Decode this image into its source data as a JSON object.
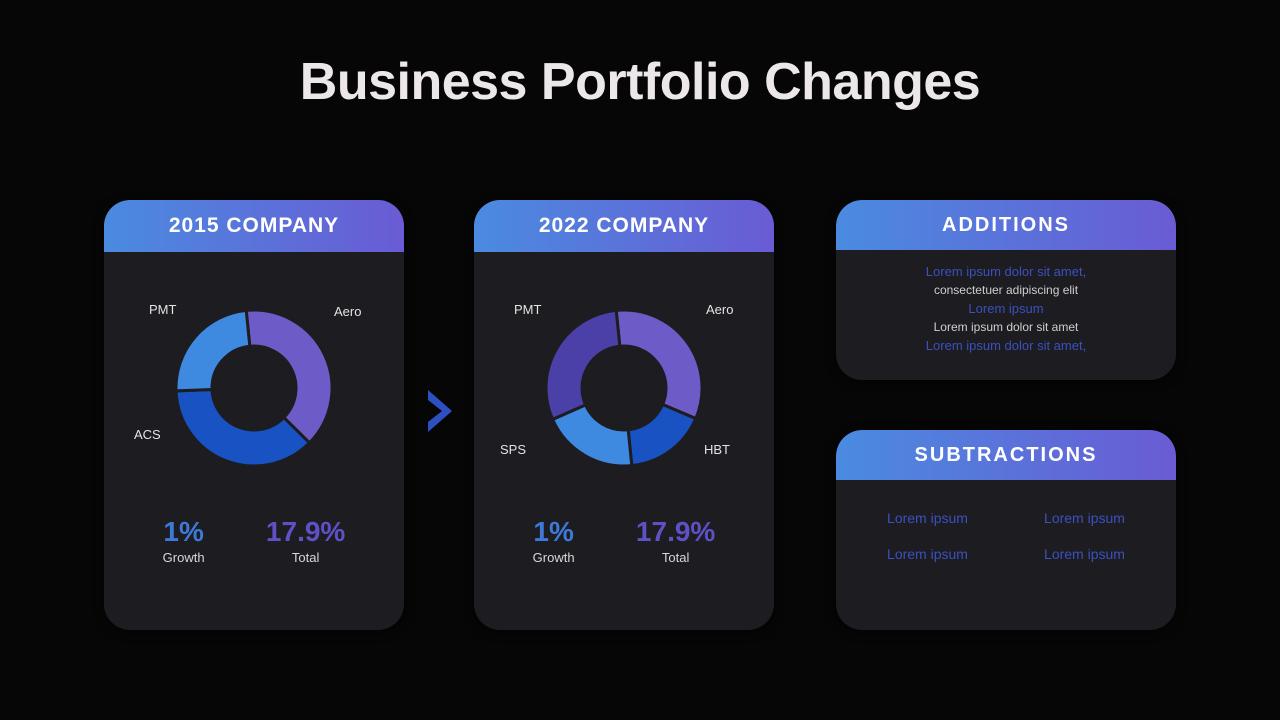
{
  "title": "Business Portfolio Changes",
  "colors": {
    "page_bg": "#060606",
    "card_bg": "#1d1c20",
    "title_text": "#ece8ea",
    "header_grad_from": "#4a8be0",
    "header_grad_to": "#6a5bd4",
    "arrow": "#2e4fc1",
    "accent_text": "#3a51bf",
    "stat_growth": "#3d79d8",
    "stat_total": "#5e51c6"
  },
  "chart_a": {
    "header": "2015 COMPANY",
    "type": "donut",
    "inner_radius": 42,
    "outer_radius": 78,
    "gap_stroke": "#1d1c20",
    "slices": [
      {
        "label": "Aero",
        "value": 39,
        "pct_text": "39%",
        "color": "#6d5cc8"
      },
      {
        "label": "ACS",
        "value": 37,
        "pct_text": "37%",
        "color": "#1852c3"
      },
      {
        "label": "PMT",
        "value": 24,
        "pct_text": "24%",
        "color": "#3e8ae0"
      }
    ],
    "stats": {
      "growth_value": "1%",
      "growth_label": "Growth",
      "growth_color": "#3d79d8",
      "total_value": "17.9%",
      "total_label": "Total",
      "total_color": "#5e51c6"
    }
  },
  "chart_b": {
    "header": "2022 COMPANY",
    "type": "donut",
    "inner_radius": 42,
    "outer_radius": 78,
    "gap_stroke": "#1d1c20",
    "slices": [
      {
        "label": "Aero",
        "value": 33,
        "pct_text": "33%",
        "color": "#6d5cc8"
      },
      {
        "label": "HBT",
        "value": 17,
        "pct_text": "17%",
        "color": "#1852c3"
      },
      {
        "label": "SPS",
        "value": 20,
        "pct_text": "20%",
        "color": "#3e8ae0"
      },
      {
        "label": "PMT",
        "value": 30,
        "pct_text": "30%",
        "color": "#4b3fa8"
      }
    ],
    "stats": {
      "growth_value": "1%",
      "growth_label": "Growth",
      "growth_color": "#3d79d8",
      "total_value": "17.9%",
      "total_label": "Total",
      "total_color": "#5e51c6"
    }
  },
  "additions": {
    "header": "ADDITIONS",
    "lines": [
      {
        "text": "Lorem ipsum dolor sit amet,",
        "accent": true
      },
      {
        "text": "consectetuer adipiscing elit",
        "accent": false
      },
      {
        "text": "Lorem ipsum",
        "accent": true
      },
      {
        "text": "Lorem ipsum dolor sit amet",
        "accent": false
      },
      {
        "text": "Lorem ipsum dolor sit amet,",
        "accent": true
      }
    ]
  },
  "subtractions": {
    "header": "SUBTRACTIONS",
    "items": [
      "Lorem ipsum",
      "Lorem ipsum",
      "Lorem ipsum",
      "Lorem ipsum"
    ]
  }
}
